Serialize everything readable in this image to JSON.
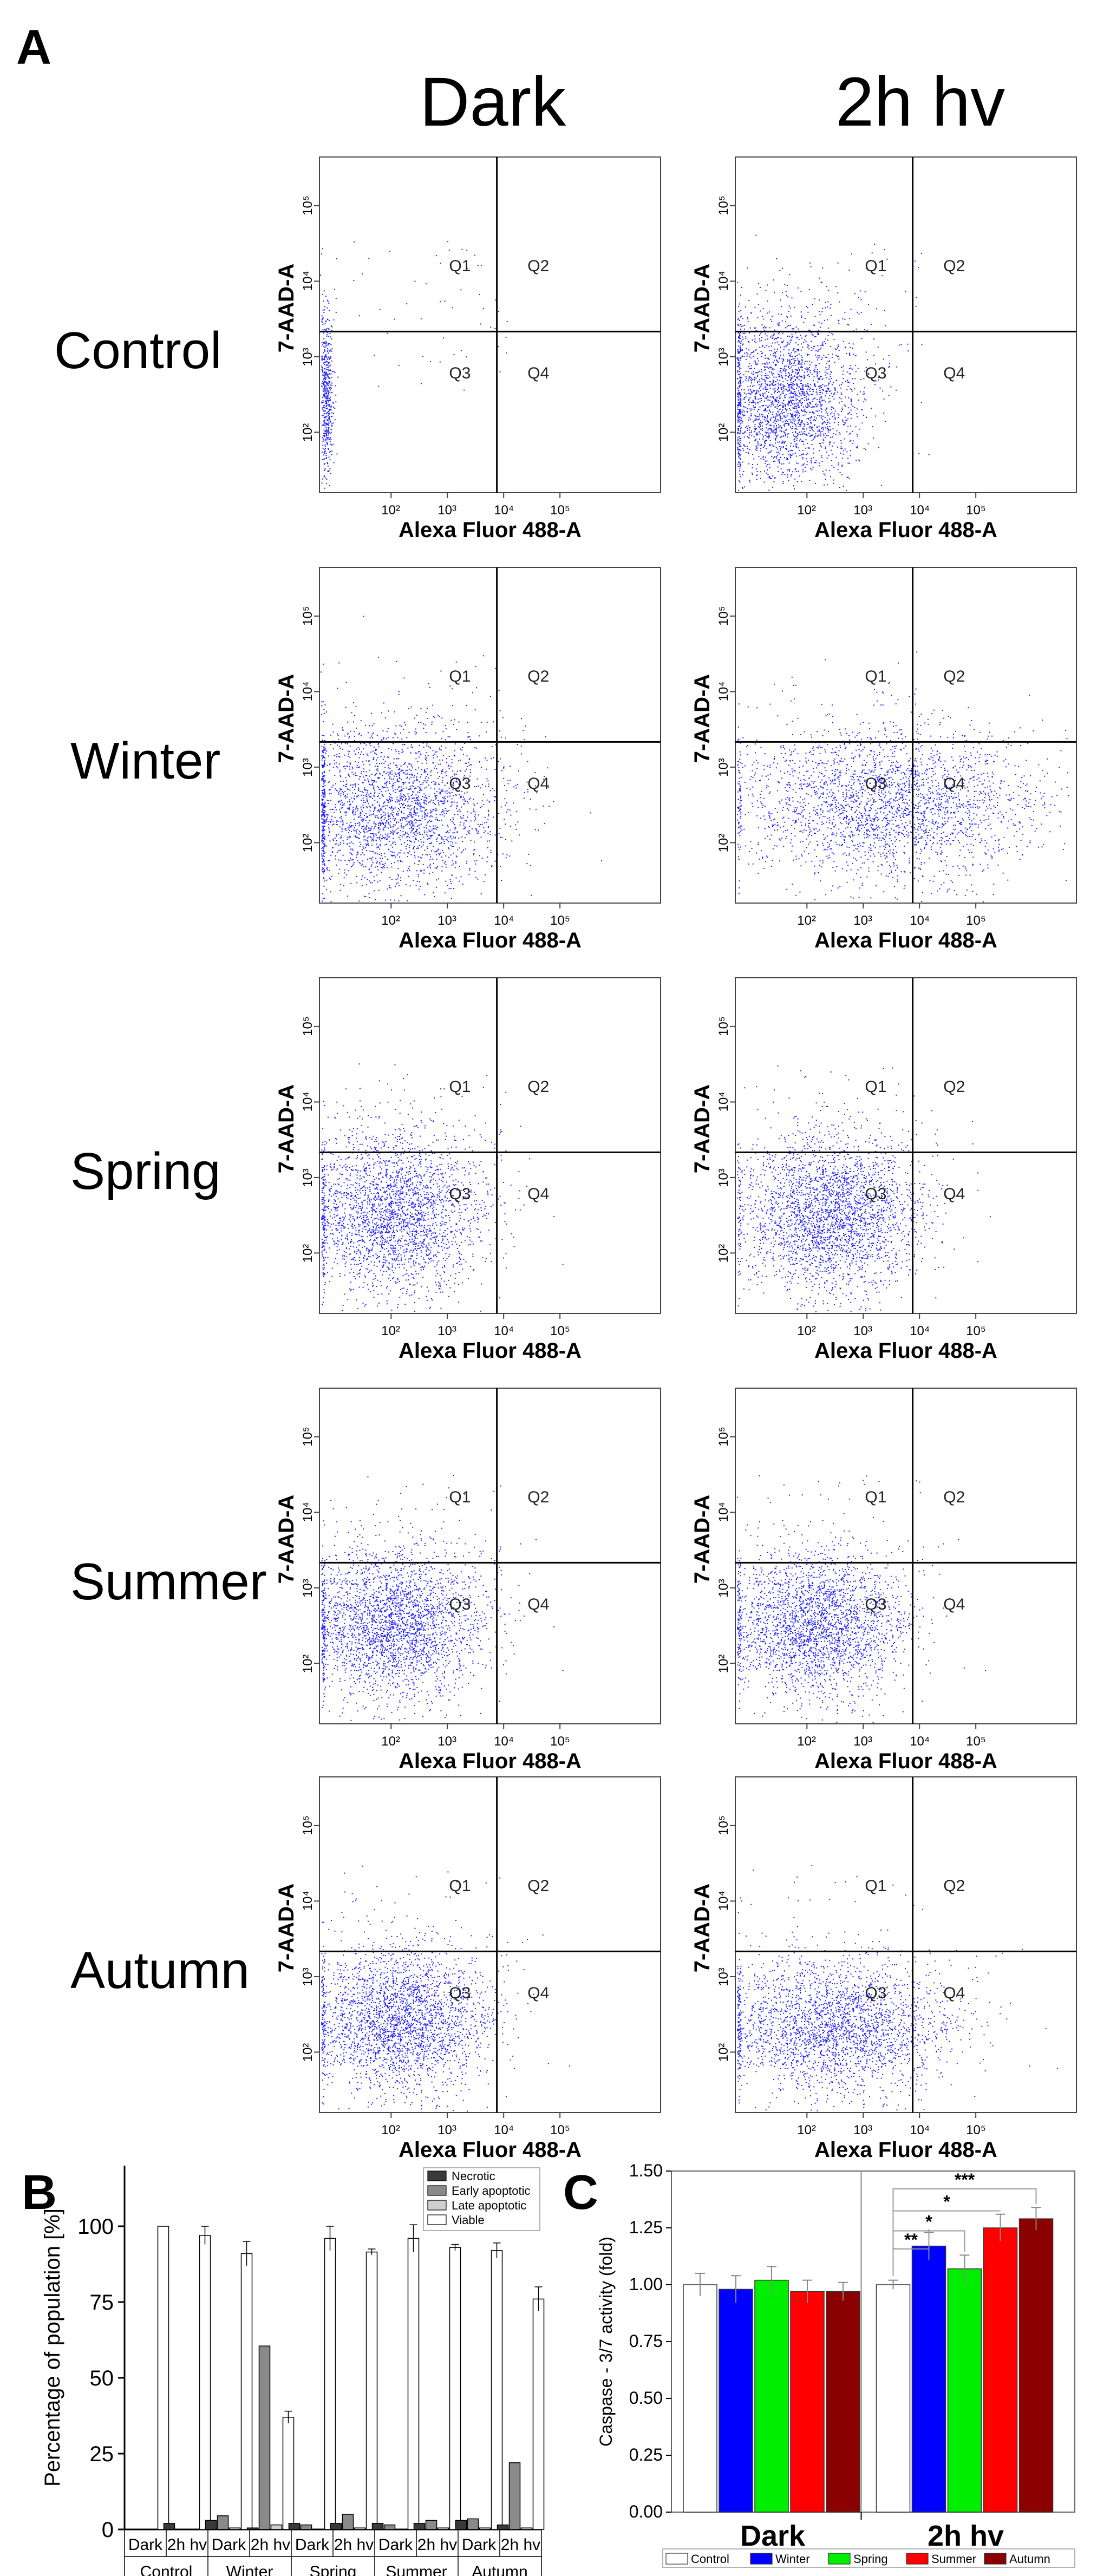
{
  "panels": {
    "a": "A",
    "b": "B",
    "c": "C"
  },
  "flow": {
    "col_titles": [
      "Dark",
      "2h hv"
    ],
    "row_titles": [
      "Control",
      "Winter",
      "Spring",
      "Summer",
      "Autumn"
    ],
    "x_label": "Alexa Fluor 488-A",
    "y_label": "7-AAD-A",
    "x_ticks": [
      "10²",
      "10³",
      "10⁴",
      "10⁵"
    ],
    "y_ticks": [
      "10²",
      "10³",
      "10⁴",
      "10⁵"
    ],
    "quadrants": [
      "Q1",
      "Q2",
      "Q3",
      "Q4"
    ],
    "dot_color": "#1a1aff"
  },
  "chart_data": [
    {
      "type": "bar",
      "panel": "B",
      "ylabel": "Percentage of population [%]",
      "ylim": [
        0,
        120
      ],
      "yticks": [
        "0",
        "25",
        "50",
        "75",
        "100"
      ],
      "groups": [
        "Control",
        "Winter",
        "Spring",
        "Summer",
        "Autumn"
      ],
      "sub_categories": [
        "Dark",
        "2h hv"
      ],
      "series": [
        {
          "name": "Necrotic",
          "color": "#3a3a3a",
          "values": [
            0,
            2,
            3,
            0.5,
            2,
            2,
            2,
            2,
            3,
            1.5
          ]
        },
        {
          "name": "Early apoptotic",
          "color": "#8a8a8a",
          "values": [
            0,
            0,
            4.5,
            60.5,
            1.5,
            5,
            1.5,
            3,
            3.5,
            22
          ]
        },
        {
          "name": "Late apoptotic",
          "color": "#cfcfcf",
          "values": [
            0,
            0,
            0.5,
            1.5,
            0,
            0.5,
            0,
            0.5,
            0.5,
            0.5
          ]
        },
        {
          "name": "Viable",
          "color": "#ffffff",
          "values": [
            100,
            97,
            91,
            37,
            96,
            91.5,
            96,
            93,
            92,
            76
          ]
        }
      ],
      "viable_err": [
        0,
        3,
        4,
        2,
        4,
        1,
        4.5,
        1,
        2.5,
        4
      ],
      "legend_position": "top-right"
    },
    {
      "type": "bar",
      "panel": "C",
      "ylabel": "Caspase - 3/7 activity (fold)",
      "ylim": [
        0,
        1.5
      ],
      "yticks": [
        "0.00",
        "0.25",
        "0.50",
        "0.75",
        "1.00",
        "1.25",
        "1.50"
      ],
      "groups": [
        "Dark",
        "2h hv"
      ],
      "series": [
        {
          "name": "Control",
          "color": "#ffffff",
          "values": [
            1.0,
            1.0
          ],
          "err": [
            0.05,
            0.02
          ]
        },
        {
          "name": "Winter",
          "color": "#0000ff",
          "values": [
            0.98,
            1.17
          ],
          "err": [
            0.06,
            0.06
          ]
        },
        {
          "name": "Spring",
          "color": "#00ee00",
          "values": [
            1.02,
            1.07
          ],
          "err": [
            0.06,
            0.06
          ]
        },
        {
          "name": "Summer",
          "color": "#ff0000",
          "values": [
            0.97,
            1.25
          ],
          "err": [
            0.05,
            0.06
          ]
        },
        {
          "name": "Autumn",
          "color": "#8b0000",
          "values": [
            0.97,
            1.29
          ],
          "err": [
            0.04,
            0.05
          ]
        }
      ],
      "significance": [
        {
          "label": "**",
          "vs": "Winter"
        },
        {
          "label": "*",
          "vs": "Spring"
        },
        {
          "label": "*",
          "vs": "Summer"
        },
        {
          "label": "***",
          "vs": "Autumn"
        }
      ],
      "legend_position": "bottom"
    }
  ]
}
